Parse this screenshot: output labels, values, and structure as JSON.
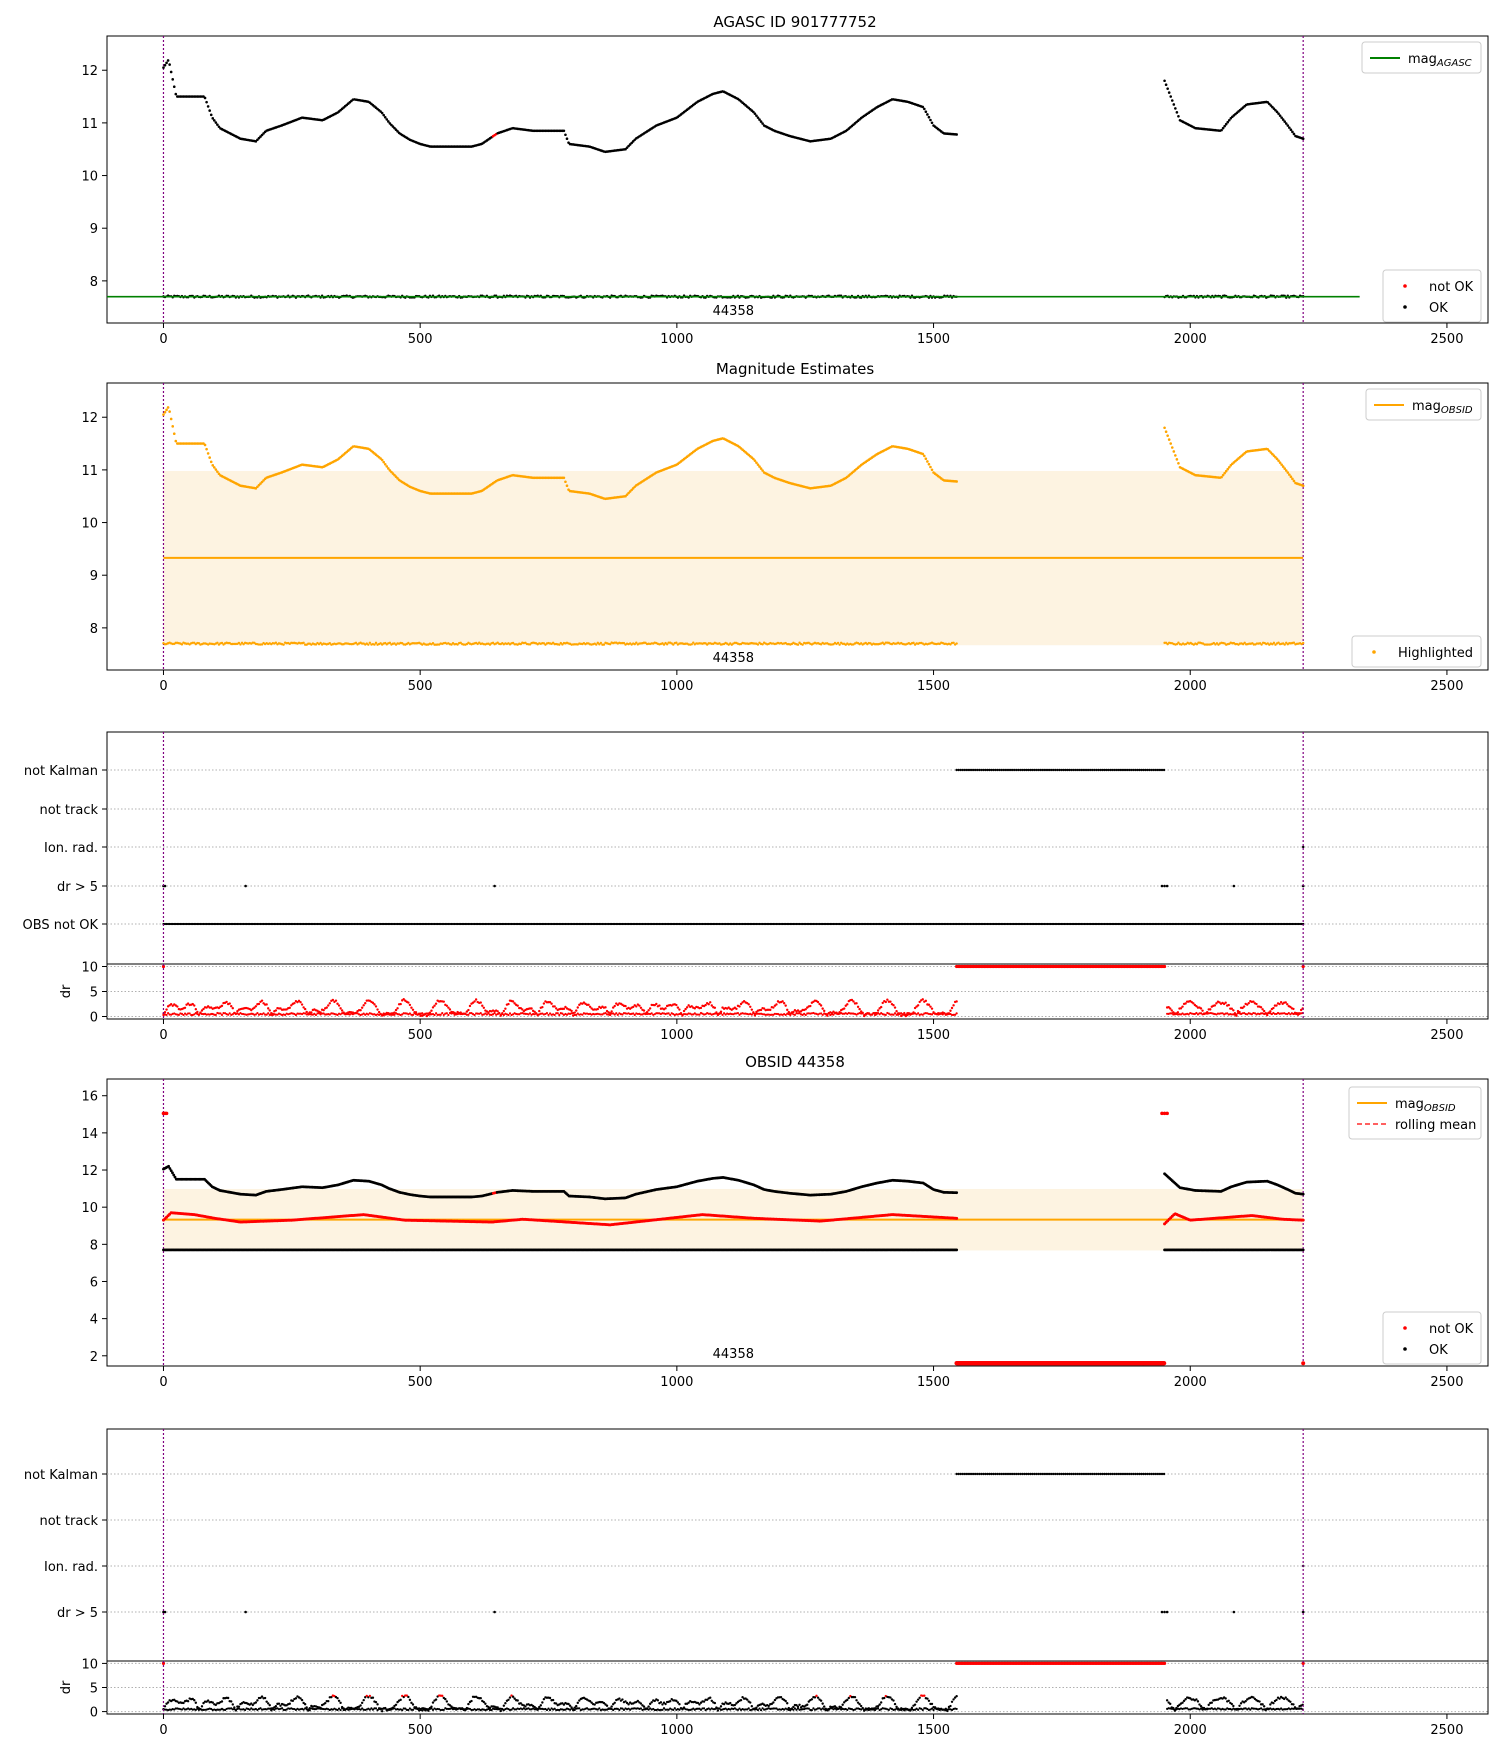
{
  "chart_data": [
    {
      "type": "scatter",
      "title": "AGASC ID 901777752",
      "xlim": [
        -110,
        2580
      ],
      "ylim": [
        7.2,
        12.65
      ],
      "xticks": [
        "0",
        "500",
        "1000",
        "1500",
        "2000",
        "2500"
      ],
      "yticks": [
        "8",
        "9",
        "10",
        "11",
        "12"
      ],
      "obsid_label": "44358",
      "vlines_x": [
        0,
        2220
      ],
      "mag_agasc": 7.7,
      "legend_upper": [
        {
          "label": "mag",
          "sub": "AGASC",
          "color": "#008000"
        }
      ],
      "legend_lower": [
        {
          "label": "not OK",
          "color": "#ff0000"
        },
        {
          "label": "OK",
          "color": "#000000"
        }
      ]
    },
    {
      "type": "scatter",
      "title": "Magnitude Estimates",
      "xlim": [
        -110,
        2580
      ],
      "ylim": [
        7.2,
        12.65
      ],
      "xticks": [
        "0",
        "500",
        "1000",
        "1500",
        "2000",
        "2500"
      ],
      "yticks": [
        "8",
        "9",
        "10",
        "11",
        "12"
      ],
      "obsid_label": "44358",
      "mag_obsid": 9.33,
      "band": [
        7.67,
        10.98
      ],
      "legend_upper": [
        {
          "label": "mag",
          "sub": "OBSID",
          "color": "#ffa500"
        }
      ],
      "legend_lower": [
        {
          "label": "Highlighted",
          "color": "#ffa500"
        }
      ]
    },
    {
      "type": "scatter",
      "title": "",
      "flag_labels": [
        "not Kalman",
        "not track",
        "Ion. rad.",
        "dr > 5",
        "OBS not OK"
      ],
      "dr_yticks": [
        "0",
        "5",
        "10"
      ],
      "xticks": [
        "0",
        "500",
        "1000",
        "1500",
        "2000",
        "2500"
      ],
      "xlim": [
        -110,
        2580
      ],
      "dr_ylim": [
        -0.5,
        10.5
      ]
    },
    {
      "type": "scatter",
      "title": "OBSID 44358",
      "xlim": [
        -110,
        2580
      ],
      "ylim": [
        1.45,
        16.9
      ],
      "xticks": [
        "0",
        "500",
        "1000",
        "1500",
        "2000",
        "2500"
      ],
      "yticks": [
        "2",
        "4",
        "6",
        "8",
        "10",
        "12",
        "14",
        "16"
      ],
      "obsid_label": "44358",
      "mag_obsid": 9.33,
      "band": [
        7.67,
        10.98
      ],
      "legend_upper": [
        {
          "label": "mag",
          "sub": "OBSID",
          "color": "#ffa500"
        },
        {
          "label": "rolling mean",
          "color": "#ff0000",
          "dashed": true
        }
      ],
      "legend_lower": [
        {
          "label": "not OK",
          "color": "#ff0000"
        },
        {
          "label": "OK",
          "color": "#000000"
        }
      ]
    },
    {
      "type": "scatter",
      "title": "",
      "flag_labels": [
        "not Kalman",
        "not track",
        "Ion. rad.",
        "dr > 5"
      ],
      "dr_yticks": [
        "0",
        "5",
        "10"
      ],
      "xticks": [
        "0",
        "500",
        "1000",
        "1500",
        "2000",
        "2500"
      ],
      "xlim": [
        -110,
        2580
      ],
      "dr_ylim": [
        -0.5,
        10.5
      ]
    }
  ],
  "common": {
    "dr_label": "dr",
    "segment_A": [
      0,
      1545
    ],
    "segment_gap": [
      1545,
      1950
    ],
    "segment_B": [
      1950,
      2220
    ],
    "mag_profile": [
      [
        0,
        12.05
      ],
      [
        10,
        12.2
      ],
      [
        25,
        11.5
      ],
      [
        80,
        11.5
      ],
      [
        95,
        11.1
      ],
      [
        110,
        10.9
      ],
      [
        150,
        10.7
      ],
      [
        180,
        10.65
      ],
      [
        200,
        10.85
      ],
      [
        230,
        10.95
      ],
      [
        270,
        11.1
      ],
      [
        310,
        11.05
      ],
      [
        340,
        11.2
      ],
      [
        370,
        11.45
      ],
      [
        400,
        11.4
      ],
      [
        425,
        11.2
      ],
      [
        440,
        11.0
      ],
      [
        460,
        10.8
      ],
      [
        480,
        10.68
      ],
      [
        500,
        10.6
      ],
      [
        520,
        10.55
      ],
      [
        600,
        10.55
      ],
      [
        620,
        10.6
      ],
      [
        650,
        10.8
      ],
      [
        680,
        10.9
      ],
      [
        720,
        10.85
      ],
      [
        780,
        10.85
      ],
      [
        790,
        10.6
      ],
      [
        830,
        10.55
      ],
      [
        860,
        10.45
      ],
      [
        900,
        10.5
      ],
      [
        920,
        10.7
      ],
      [
        960,
        10.95
      ],
      [
        1000,
        11.1
      ],
      [
        1040,
        11.4
      ],
      [
        1070,
        11.55
      ],
      [
        1090,
        11.6
      ],
      [
        1120,
        11.45
      ],
      [
        1150,
        11.2
      ],
      [
        1170,
        10.95
      ],
      [
        1190,
        10.85
      ],
      [
        1220,
        10.75
      ],
      [
        1260,
        10.65
      ],
      [
        1300,
        10.7
      ],
      [
        1330,
        10.85
      ],
      [
        1360,
        11.1
      ],
      [
        1390,
        11.3
      ],
      [
        1420,
        11.45
      ],
      [
        1450,
        11.4
      ],
      [
        1480,
        11.3
      ],
      [
        1500,
        10.95
      ],
      [
        1520,
        10.8
      ],
      [
        1545,
        10.78
      ]
    ],
    "mag_profile_B": [
      [
        1950,
        11.8
      ],
      [
        1980,
        11.05
      ],
      [
        2010,
        10.9
      ],
      [
        2060,
        10.85
      ],
      [
        2080,
        11.1
      ],
      [
        2110,
        11.35
      ],
      [
        2150,
        11.4
      ],
      [
        2170,
        11.2
      ],
      [
        2190,
        10.95
      ],
      [
        2205,
        10.75
      ],
      [
        2220,
        10.7
      ]
    ],
    "rolling_profile": [
      [
        0,
        9.3
      ],
      [
        15,
        9.7
      ],
      [
        60,
        9.6
      ],
      [
        100,
        9.4
      ],
      [
        150,
        9.2
      ],
      [
        250,
        9.3
      ],
      [
        390,
        9.6
      ],
      [
        470,
        9.3
      ],
      [
        640,
        9.2
      ],
      [
        700,
        9.35
      ],
      [
        870,
        9.05
      ],
      [
        1050,
        9.6
      ],
      [
        1150,
        9.4
      ],
      [
        1280,
        9.25
      ],
      [
        1420,
        9.6
      ],
      [
        1545,
        9.4
      ],
      [
        1950,
        9.1
      ],
      [
        1970,
        9.65
      ],
      [
        2000,
        9.3
      ],
      [
        2120,
        9.55
      ],
      [
        2180,
        9.35
      ],
      [
        2220,
        9.3
      ]
    ]
  }
}
